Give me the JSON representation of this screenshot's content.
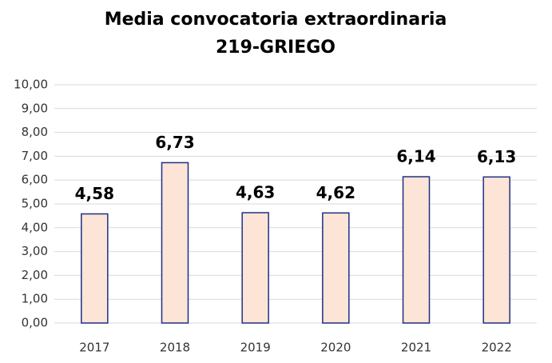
{
  "chart_data": {
    "type": "bar",
    "title": "Media convocatoria extraordinaria",
    "subtitle": "219-GRIEGO",
    "categories": [
      "2017",
      "2018",
      "2019",
      "2020",
      "2021",
      "2022"
    ],
    "values": [
      4.58,
      6.73,
      4.63,
      4.62,
      6.14,
      6.13
    ],
    "value_labels": [
      "4,58",
      "6,73",
      "4,63",
      "4,62",
      "6,14",
      "6,13"
    ],
    "color": "#fce4d6",
    "edgecolor": "#1f2f86",
    "ylim": [
      0,
      10
    ],
    "yticks": [
      {
        "value": 0,
        "label": "0,00"
      },
      {
        "value": 1,
        "label": "1,00"
      },
      {
        "value": 2,
        "label": "2,00"
      },
      {
        "value": 3,
        "label": "3,00"
      },
      {
        "value": 4,
        "label": "4,00"
      },
      {
        "value": 5,
        "label": "5,00"
      },
      {
        "value": 6,
        "label": "6,00"
      },
      {
        "value": 7,
        "label": "7,00"
      },
      {
        "value": 8,
        "label": "8,00"
      },
      {
        "value": 9,
        "label": "9,00"
      },
      {
        "value": 10,
        "label": "10,00"
      }
    ],
    "grid": true
  }
}
